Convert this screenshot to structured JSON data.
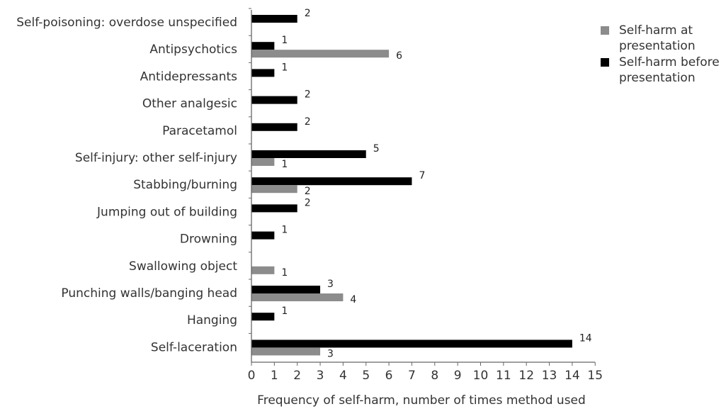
{
  "chart_data": {
    "type": "bar",
    "orientation": "horizontal",
    "categories": [
      "Self-poisoning: overdose unspecified",
      "Antipsychotics",
      "Antidepressants",
      "Other analgesic",
      "Paracetamol",
      "Self-injury: other self-injury",
      "Stabbing/burning",
      "Jumping out of building",
      "Drowning",
      "Swallowing object",
      "Punching walls/banging head",
      "Hanging",
      "Self-laceration"
    ],
    "series": [
      {
        "name": "Self-harm before presentation",
        "legend_lines": [
          "Self-harm before",
          "presentation"
        ],
        "color": "#000000",
        "values": [
          2,
          1,
          1,
          2,
          2,
          5,
          7,
          2,
          1,
          null,
          3,
          1,
          14
        ]
      },
      {
        "name": "Self-harm at presentation",
        "legend_lines": [
          "Self-harm at",
          "presentation"
        ],
        "color": "#8c8c8c",
        "values": [
          null,
          6,
          null,
          null,
          null,
          1,
          2,
          null,
          null,
          1,
          4,
          null,
          3
        ]
      }
    ],
    "xlabel": "Frequency of self-harm, number of times method used",
    "xlim": [
      0,
      15
    ],
    "xticks": [
      0,
      1,
      2,
      3,
      4,
      5,
      6,
      7,
      8,
      9,
      10,
      11,
      12,
      13,
      14,
      15
    ],
    "grid": false,
    "legend_position": "top-right",
    "legend_order": [
      1,
      0
    ]
  }
}
